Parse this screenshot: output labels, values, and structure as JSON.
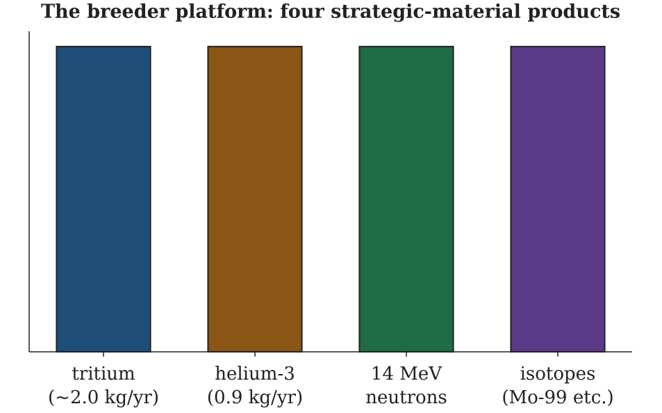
{
  "chart_data": {
    "type": "bar",
    "title": "The breeder platform: four strategic-material products",
    "categories": [
      [
        "tritium",
        "(~2.0 kg/yr)"
      ],
      [
        "helium-3",
        "(0.9 kg/yr)"
      ],
      [
        "14 MeV",
        "neutrons"
      ],
      [
        "isotopes",
        "(Mo-99 etc.)"
      ]
    ],
    "values": [
      1,
      1,
      1,
      1
    ],
    "colors": [
      "#1f4e79",
      "#8b5513",
      "#1e6b45",
      "#5b3a87"
    ],
    "ylim": [
      0,
      1.05
    ]
  }
}
